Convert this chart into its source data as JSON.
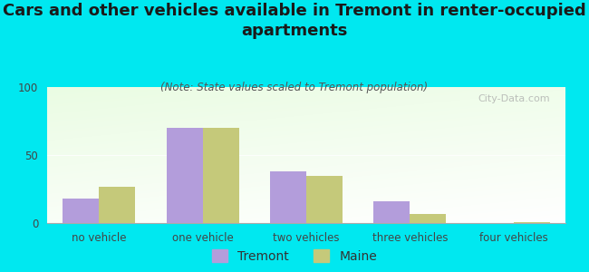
{
  "title": "Cars and other vehicles available in Tremont in renter-occupied\napartments",
  "subtitle": "(Note: State values scaled to Tremont population)",
  "categories": [
    "no vehicle",
    "one vehicle",
    "two vehicles",
    "three vehicles",
    "four vehicles"
  ],
  "tremont_values": [
    18,
    70,
    38,
    16,
    0
  ],
  "maine_values": [
    27,
    70,
    35,
    7,
    1
  ],
  "tremont_color": "#b39ddb",
  "maine_color": "#c5c97a",
  "background_color": "#00e8f0",
  "ylim": [
    0,
    100
  ],
  "yticks": [
    0,
    50,
    100
  ],
  "bar_width": 0.35,
  "legend_labels": [
    "Tremont",
    "Maine"
  ],
  "watermark": "City-Data.com",
  "title_fontsize": 13,
  "subtitle_fontsize": 8.5,
  "axis_label_fontsize": 8.5,
  "legend_fontsize": 10,
  "title_color": "#1a1a1a",
  "subtitle_color": "#555555",
  "tick_color": "#444444"
}
